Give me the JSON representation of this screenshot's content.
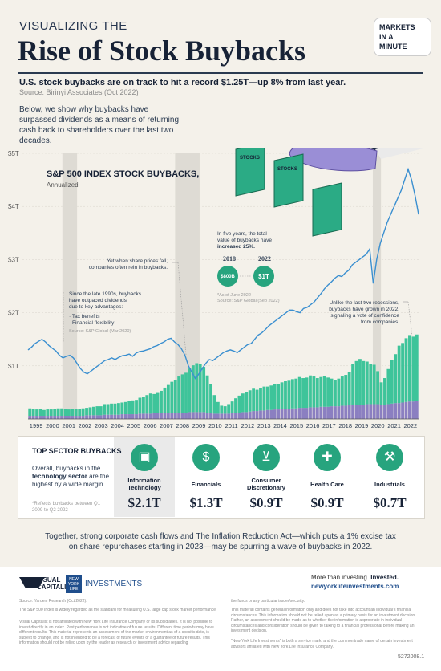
{
  "header": {
    "kicker": "VISUALIZING THE",
    "title": "Rise of Stock Buybacks",
    "subtitle": "U.S. stock buybacks are on track to hit a record $1.25T—up 8% from last year.",
    "source": "Source: Birinyi Associates (Oct 2022)",
    "intro": "Below, we show why buybacks have surpassed dividends as a means of returning cash back to shareholders over the last two decades.",
    "logo": [
      "MARKETS",
      "IN A",
      "MINUTE"
    ]
  },
  "chart_labels": {
    "title": "S&P 500 INDEX STOCK BUYBACKS,",
    "subtitle": "Annualized",
    "document_label": "STOCKS"
  },
  "annotations": {
    "a1_lines": [
      "Since the late 1990s, buybacks",
      "have outpaced dividends",
      "due to key advantages:"
    ],
    "a1_bullet1": "· Tax benefits",
    "a1_bullet2": "· Financial flexibility",
    "a1_source": "Source: S&P Global (Mar 2020)",
    "a2_lines": [
      "Yet when share prices fall,",
      "companies often rein in buybacks."
    ],
    "a3_lines": [
      "In five years, the total",
      "value of buybacks have",
      "increased 25%."
    ],
    "y2018": "2018",
    "y2022": "2022",
    "v2018": "$800B",
    "v2022": "$1T",
    "a3_note1": "*As of June 2022",
    "a3_note2": "Source: S&P Global (Sep 2022)",
    "a4_lines": [
      "Unlike the last two recessions,",
      "buybacks have grown in 2022,",
      "signaling a vote of confidence",
      "from companies."
    ]
  },
  "chart_data": {
    "type": "bar",
    "categories": [
      "1999",
      "2000",
      "2001",
      "2002",
      "2003",
      "2004",
      "2005",
      "2006",
      "2007",
      "2008",
      "2009",
      "2010",
      "2011",
      "2012",
      "2013",
      "2014",
      "2015",
      "2016",
      "2017",
      "2018",
      "2019",
      "2020",
      "2021",
      "2022"
    ],
    "ylim": [
      0,
      5
    ],
    "y_ticks": [
      "$1T",
      "$2T",
      "$3T",
      "$4T",
      "$5T"
    ],
    "y_tick_values": [
      1,
      2,
      3,
      4,
      5
    ],
    "buyback_series": [
      0.14,
      0.13,
      0.12,
      0.13,
      0.11,
      0.12,
      0.12,
      0.13,
      0.14,
      0.14,
      0.13,
      0.12,
      0.13,
      0.13,
      0.13,
      0.14,
      0.14,
      0.15,
      0.16,
      0.17,
      0.17,
      0.2,
      0.2,
      0.21,
      0.21,
      0.22,
      0.22,
      0.23,
      0.25,
      0.26,
      0.27,
      0.3,
      0.32,
      0.35,
      0.38,
      0.36,
      0.38,
      0.42,
      0.48,
      0.52,
      0.58,
      0.62,
      0.68,
      0.72,
      0.75,
      0.82,
      0.88,
      0.92,
      0.9,
      0.85,
      0.7,
      0.55,
      0.35,
      0.22,
      0.15,
      0.14,
      0.18,
      0.22,
      0.28,
      0.32,
      0.35,
      0.38,
      0.4,
      0.42,
      0.4,
      0.42,
      0.45,
      0.44,
      0.46,
      0.48,
      0.47,
      0.5,
      0.52,
      0.53,
      0.55,
      0.56,
      0.58,
      0.56,
      0.57,
      0.6,
      0.58,
      0.55,
      0.56,
      0.58,
      0.55,
      0.52,
      0.5,
      0.52,
      0.55,
      0.58,
      0.62,
      0.78,
      0.82,
      0.86,
      0.82,
      0.8,
      0.76,
      0.74,
      0.62,
      0.42,
      0.5,
      0.66,
      0.82,
      0.92,
      1.08,
      1.12,
      1.2,
      1.25,
      1.22,
      1.25
    ],
    "dividend_series": [
      0.06,
      0.06,
      0.06,
      0.06,
      0.06,
      0.06,
      0.06,
      0.06,
      0.06,
      0.06,
      0.06,
      0.06,
      0.06,
      0.06,
      0.06,
      0.06,
      0.07,
      0.07,
      0.07,
      0.07,
      0.07,
      0.08,
      0.08,
      0.08,
      0.08,
      0.08,
      0.09,
      0.09,
      0.09,
      0.09,
      0.09,
      0.1,
      0.1,
      0.1,
      0.1,
      0.11,
      0.11,
      0.11,
      0.11,
      0.12,
      0.12,
      0.12,
      0.12,
      0.12,
      0.12,
      0.13,
      0.13,
      0.13,
      0.13,
      0.13,
      0.12,
      0.11,
      0.1,
      0.1,
      0.1,
      0.1,
      0.1,
      0.11,
      0.11,
      0.12,
      0.13,
      0.13,
      0.14,
      0.15,
      0.15,
      0.16,
      0.16,
      0.17,
      0.17,
      0.18,
      0.18,
      0.19,
      0.19,
      0.19,
      0.2,
      0.2,
      0.21,
      0.21,
      0.21,
      0.22,
      0.22,
      0.22,
      0.23,
      0.23,
      0.23,
      0.24,
      0.24,
      0.24,
      0.25,
      0.25,
      0.26,
      0.26,
      0.27,
      0.27,
      0.27,
      0.28,
      0.28,
      0.28,
      0.28,
      0.27,
      0.27,
      0.28,
      0.29,
      0.3,
      0.3,
      0.31,
      0.32,
      0.33,
      0.33,
      0.34
    ],
    "index_series": [
      1.3,
      1.35,
      1.42,
      1.46,
      1.5,
      1.45,
      1.38,
      1.33,
      1.28,
      1.2,
      1.15,
      1.18,
      1.2,
      1.15,
      1.05,
      0.95,
      0.88,
      0.85,
      0.9,
      0.95,
      1.0,
      1.05,
      1.1,
      1.12,
      1.15,
      1.12,
      1.16,
      1.19,
      1.2,
      1.22,
      1.18,
      1.24,
      1.27,
      1.28,
      1.3,
      1.32,
      1.36,
      1.38,
      1.42,
      1.45,
      1.5,
      1.52,
      1.45,
      1.4,
      1.32,
      1.2,
      1.0,
      0.88,
      0.76,
      0.85,
      0.95,
      1.05,
      1.12,
      1.1,
      1.15,
      1.2,
      1.25,
      1.28,
      1.3,
      1.28,
      1.25,
      1.3,
      1.35,
      1.4,
      1.42,
      1.5,
      1.58,
      1.62,
      1.68,
      1.75,
      1.8,
      1.85,
      1.9,
      1.95,
      2.0,
      2.05,
      2.05,
      2.02,
      2.0,
      2.08,
      2.1,
      2.15,
      2.2,
      2.28,
      2.36,
      2.45,
      2.52,
      2.58,
      2.65,
      2.7,
      2.68,
      2.75,
      2.8,
      2.9,
      2.95,
      3.0,
      3.05,
      3.1,
      3.2,
      2.55,
      3.0,
      3.3,
      3.5,
      3.7,
      3.85,
      4.0,
      4.15,
      4.3,
      4.5,
      4.7,
      4.5,
      4.2,
      3.85
    ]
  },
  "sectors": {
    "title": "TOP SECTOR BUYBACKS",
    "desc_pre": "Overall, buybacks in the ",
    "desc_bold": "technology sector",
    "desc_post": " are the highest by a wide margin.",
    "note": "*Reflects buybacks between Q1 2009 to Q2 2022",
    "items": [
      {
        "name": "Information Technology",
        "value": "$2.1T",
        "icon": "monitor-icon"
      },
      {
        "name": "Financials",
        "value": "$1.3T",
        "icon": "dollar-icon"
      },
      {
        "name": "Consumer Discretionary",
        "value": "$0.9T",
        "icon": "cart-icon"
      },
      {
        "name": "Health Care",
        "value": "$0.9T",
        "icon": "cross-icon"
      },
      {
        "name": "Industrials",
        "value": "$0.7T",
        "icon": "excavator-icon"
      }
    ]
  },
  "together": "Together, strong corporate cash flows and The Inflation Reduction Act—which puts a 1% excise tax on share repurchases starting in 2023—may be spurring a wave of buybacks in 2022.",
  "footer": {
    "vc_line1": "VISUAL",
    "vc_line2": "CAPITALIST",
    "nyl": "NEW YORK LIFE",
    "investments": "INVESTMENTS",
    "more_pre": "More than investing. ",
    "more_bold": "Invested.",
    "url": "newyorklifeinvestments.com",
    "source": "Source: Yardeni Research (Oct 2022).",
    "left_fine_1": "The S&P 500 Index is widely regarded as the standard for measuring U.S. large cap stock market performance.",
    "left_fine_2": "Visual Capitalist is not affiliated with New York Life Insurance Company or its subsidiaries. It is not possible to invest directly in an index. Past performance is not indicative of future results. Different time periods may have different results. This material represents an assessment of the market environment as of a specific date, is subject to change, and is not intended to be a forecast of future events or a guarantee of future results. This information should not be relied upon by the reader as research or investment advice regarding",
    "right_fine_1": "the funds or any particular issuer/security.",
    "right_fine_2": "This material contains general information only and does not take into account an individual's financial circumstances. This information should not be relied upon as a primary basis for an investment decision. Rather, an assessment should be made as to whether the information is appropriate in individual circumstances and consideration should be given to talking to a financial professional before making an investment decision.",
    "right_fine_3": "\"New York Life Investments\" is both a service mark, and the common trade name of certain investment advisors affiliated with New York Life Insurance Company.",
    "code": "5272008.1"
  },
  "colors": {
    "buyback": "#3ec49a",
    "buyback_dark": "#27a47e",
    "dividend": "#8b7fc1",
    "line": "#3a8fd0",
    "recession": "#dedbd4",
    "navy": "#172236"
  }
}
